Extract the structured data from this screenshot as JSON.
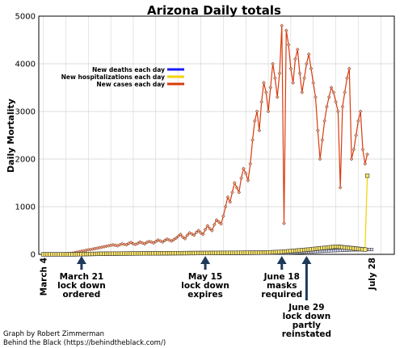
{
  "chart_data": {
    "type": "line",
    "title": "Arizona Daily totals",
    "ylabel": "Daily Mortality",
    "xlabel": "",
    "ylim": [
      0,
      5000
    ],
    "yticks": [
      0,
      1000,
      2000,
      3000,
      4000,
      5000
    ],
    "grid": true,
    "legend_placement": "top-left inside plot",
    "x_tick_labels": [
      {
        "day": 0,
        "label": "March 4"
      },
      {
        "day": 146,
        "label": "July 28"
      }
    ],
    "annotations": [
      {
        "day": 17,
        "label": "March 21\nlock down\nordered"
      },
      {
        "day": 72,
        "label": "May 15\nlock down\nexpires"
      },
      {
        "day": 106,
        "label": "June 18\nmasks\nrequired"
      },
      {
        "day": 117,
        "label": "June 29\nlock down\npartly\nreinstated"
      }
    ],
    "series": [
      {
        "name": "New deaths each day",
        "color": "#1a1aff",
        "start_day": 0,
        "values": [
          0,
          0,
          0,
          0,
          0,
          0,
          0,
          0,
          0,
          0,
          0,
          0,
          0,
          0,
          0,
          0,
          0,
          0,
          0,
          0,
          1,
          1,
          1,
          2,
          2,
          3,
          3,
          4,
          4,
          5,
          5,
          6,
          6,
          7,
          7,
          8,
          8,
          9,
          9,
          10,
          10,
          11,
          11,
          12,
          12,
          12,
          12,
          13,
          13,
          13,
          13,
          14,
          14,
          14,
          14,
          15,
          15,
          15,
          15,
          16,
          16,
          16,
          16,
          17,
          17,
          17,
          17,
          18,
          18,
          18,
          18,
          18,
          18,
          18,
          19,
          19,
          19,
          19,
          19,
          19,
          19,
          20,
          20,
          20,
          20,
          20,
          20,
          20,
          21,
          21,
          21,
          21,
          21,
          22,
          22,
          22,
          22,
          23,
          23,
          23,
          24,
          24,
          25,
          25,
          26,
          26,
          27,
          28,
          29,
          30,
          32,
          34,
          36,
          38,
          40,
          42,
          45,
          48,
          50,
          52,
          55,
          58,
          60,
          62,
          65,
          68,
          70,
          72,
          74,
          76,
          78,
          80,
          82,
          84,
          86,
          88,
          90,
          92,
          94,
          95,
          96,
          97,
          98,
          99,
          100,
          100,
          100
        ]
      },
      {
        "name": "New hospitalizations each day",
        "color": "#f2d200",
        "start_day": 0,
        "values": [
          0,
          0,
          0,
          0,
          0,
          0,
          0,
          0,
          0,
          0,
          0,
          0,
          0,
          0,
          0,
          1,
          2,
          3,
          4,
          5,
          6,
          7,
          8,
          9,
          10,
          11,
          12,
          12,
          13,
          13,
          14,
          14,
          15,
          15,
          15,
          16,
          16,
          16,
          17,
          17,
          17,
          18,
          18,
          18,
          19,
          19,
          19,
          20,
          20,
          20,
          21,
          21,
          21,
          22,
          22,
          22,
          23,
          23,
          23,
          24,
          24,
          24,
          25,
          25,
          25,
          26,
          26,
          26,
          27,
          27,
          27,
          28,
          28,
          28,
          29,
          29,
          29,
          30,
          30,
          30,
          31,
          31,
          31,
          32,
          32,
          32,
          33,
          33,
          33,
          34,
          34,
          34,
          35,
          35,
          35,
          36,
          36,
          37,
          38,
          39,
          40,
          42,
          44,
          46,
          48,
          50,
          53,
          56,
          60,
          64,
          68,
          72,
          76,
          80,
          84,
          88,
          92,
          96,
          100,
          105,
          110,
          115,
          120,
          125,
          130,
          135,
          140,
          145,
          150,
          155,
          160,
          160,
          155,
          150,
          145,
          140,
          135,
          130,
          125,
          120,
          115,
          110,
          105,
          100,
          1650
        ]
      },
      {
        "name": "New cases each day",
        "color": "#d93b0e",
        "start_day": 0,
        "values": [
          0,
          0,
          0,
          0,
          0,
          1,
          2,
          3,
          5,
          8,
          12,
          15,
          20,
          25,
          35,
          45,
          55,
          65,
          75,
          85,
          95,
          100,
          110,
          120,
          130,
          140,
          150,
          160,
          170,
          180,
          190,
          200,
          190,
          180,
          200,
          220,
          210,
          200,
          230,
          250,
          220,
          210,
          230,
          260,
          240,
          220,
          250,
          270,
          260,
          240,
          270,
          300,
          280,
          260,
          290,
          320,
          300,
          280,
          310,
          340,
          380,
          420,
          360,
          330,
          400,
          450,
          430,
          400,
          460,
          500,
          450,
          420,
          520,
          600,
          540,
          500,
          620,
          720,
          680,
          640,
          800,
          1000,
          1200,
          1100,
          1300,
          1500,
          1400,
          1300,
          1600,
          1800,
          1700,
          1550,
          1900,
          2400,
          2800,
          3000,
          2600,
          3200,
          3600,
          3400,
          3000,
          3500,
          4000,
          3700,
          3300,
          3800,
          4800,
          650,
          4700,
          4400,
          3900,
          3600,
          4100,
          4300,
          3800,
          3400,
          3700,
          4000,
          4200,
          3900,
          3600,
          3300,
          2600,
          2000,
          2400,
          2800,
          3100,
          3300,
          3500,
          3400,
          3200,
          3000,
          1400,
          3100,
          3400,
          3700,
          3900,
          2000,
          2200,
          2500,
          2800,
          3000,
          2200,
          1900,
          2100
        ]
      }
    ]
  },
  "credit": {
    "line1": "Graph by Robert Zimmerman",
    "line2": "Behind the Black (https://behindtheblack.com/)"
  }
}
